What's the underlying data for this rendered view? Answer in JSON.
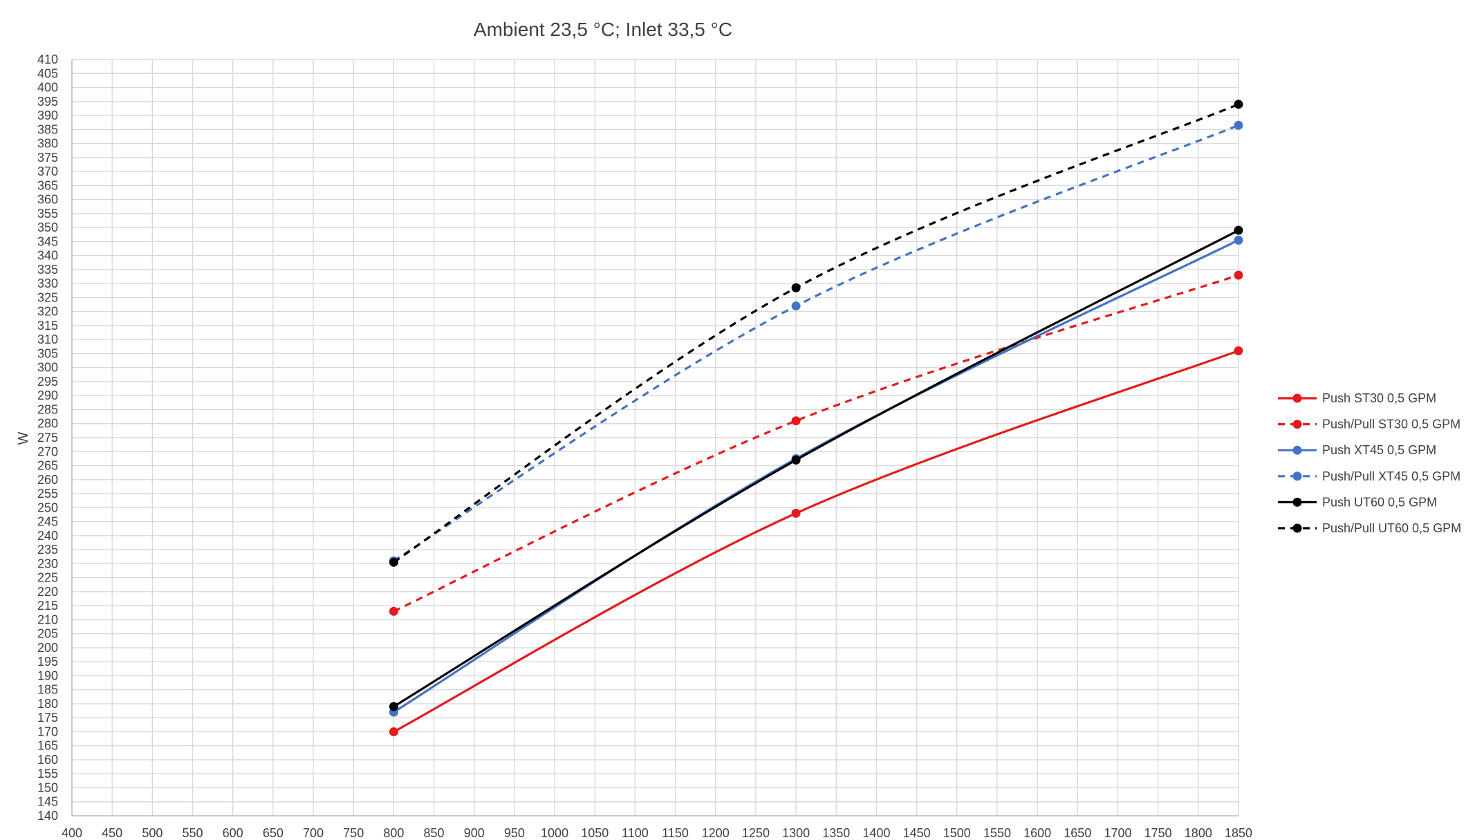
{
  "chart_data": {
    "type": "line",
    "title": "Ambient 23,5 °C; Inlet 33,5 °C",
    "xlabel": "",
    "ylabel": "W",
    "xlim": [
      400,
      1850
    ],
    "ylim": [
      140,
      410
    ],
    "x_ticks": [
      400,
      450,
      500,
      550,
      600,
      650,
      700,
      750,
      800,
      850,
      900,
      950,
      1000,
      1050,
      1100,
      1150,
      1200,
      1250,
      1300,
      1350,
      1400,
      1450,
      1500,
      1550,
      1600,
      1650,
      1700,
      1750,
      1800,
      1850
    ],
    "y_ticks": [
      140,
      145,
      150,
      155,
      160,
      165,
      170,
      175,
      180,
      185,
      190,
      195,
      200,
      205,
      210,
      215,
      220,
      225,
      230,
      235,
      240,
      245,
      250,
      255,
      260,
      265,
      270,
      275,
      280,
      285,
      290,
      295,
      300,
      305,
      310,
      315,
      320,
      325,
      330,
      335,
      340,
      345,
      350,
      355,
      360,
      365,
      370,
      375,
      380,
      385,
      390,
      395,
      400,
      405,
      410
    ],
    "grid": true,
    "legend_position": "right",
    "x": [
      800,
      1300,
      1850
    ],
    "series": [
      {
        "name": "Push ST30 0,5 GPM",
        "values": [
          170,
          248,
          306
        ],
        "color": "#e41a1c",
        "dash": false
      },
      {
        "name": "Push/Pull ST30 0,5 GPM",
        "values": [
          213,
          281,
          333
        ],
        "color": "#e41a1c",
        "dash": true
      },
      {
        "name": "Push XT45 0,5 GPM",
        "values": [
          177,
          267.5,
          345.5
        ],
        "color": "#4472c4",
        "dash": false
      },
      {
        "name": "Push/Pull XT45 0,5 GPM",
        "values": [
          231,
          322,
          386.5
        ],
        "color": "#4472c4",
        "dash": true
      },
      {
        "name": "Push UT60 0,5 GPM",
        "values": [
          179,
          267,
          349
        ],
        "color": "#000000",
        "dash": false
      },
      {
        "name": "Push/Pull UT60 0,5 GPM",
        "values": [
          230.5,
          328.5,
          394
        ],
        "color": "#000000",
        "dash": true
      }
    ]
  }
}
